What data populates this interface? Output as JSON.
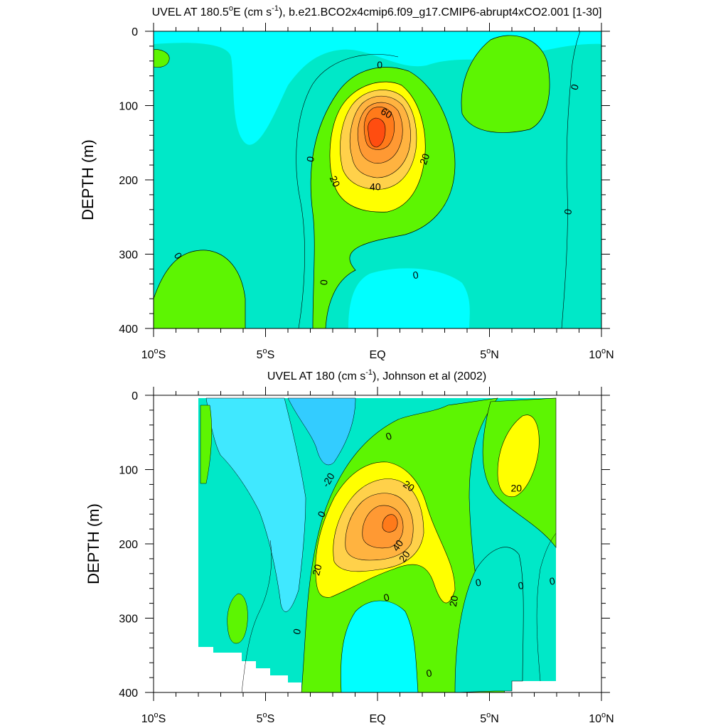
{
  "chart_data": [
    {
      "type": "contour",
      "title_main": "UVEL AT 180.5",
      "title_deg": "o",
      "title_mid": "E (cm s",
      "title_sup": "-1",
      "title_end": "), b.e21.BCO2x4cmip6.f09_g17.CMIP6-abrupt4xCO2.001 [1-30]",
      "ylabel": "DEPTH (m)",
      "xlim": [
        -10,
        10
      ],
      "ylim": [
        0,
        400
      ],
      "y_inverted": true,
      "y_ticks": [
        "0",
        "100",
        "200",
        "300",
        "400"
      ],
      "x_ticks": [
        {
          "v": -10,
          "num": "10",
          "deg": "o",
          "hem": "S"
        },
        {
          "v": -5,
          "num": "5",
          "deg": "o",
          "hem": "S"
        },
        {
          "v": 0,
          "num": "EQ",
          "deg": "",
          "hem": ""
        },
        {
          "v": 5,
          "num": "5",
          "deg": "o",
          "hem": "N"
        },
        {
          "v": 10,
          "num": "10",
          "deg": "o",
          "hem": "N"
        }
      ],
      "max_core": {
        "lat": 0.0,
        "depth": 145,
        "value": 70
      },
      "contour_labels": [
        {
          "text": "0",
          "lat": 0.1,
          "depth": 45,
          "rot": 0
        },
        {
          "text": "60",
          "lat": 0.4,
          "depth": 110,
          "rot": 30
        },
        {
          "text": "20",
          "lat": 2.1,
          "depth": 172,
          "rot": -70
        },
        {
          "text": "0",
          "lat": -3.0,
          "depth": 172,
          "rot": -80
        },
        {
          "text": "20",
          "lat": -1.9,
          "depth": 202,
          "rot": 65
        },
        {
          "text": "40",
          "lat": -0.1,
          "depth": 209,
          "rot": 0
        },
        {
          "text": "0",
          "lat": 8.8,
          "depth": 75,
          "rot": -75
        },
        {
          "text": "0",
          "lat": 8.5,
          "depth": 243,
          "rot": -80
        },
        {
          "text": "0",
          "lat": -8.9,
          "depth": 302,
          "rot": 60
        },
        {
          "text": "0",
          "lat": -2.4,
          "depth": 338,
          "rot": -85
        },
        {
          "text": "0",
          "lat": 1.7,
          "depth": 328,
          "rot": -10
        }
      ]
    },
    {
      "type": "contour",
      "title_main": "UVEL AT 180 (cm s",
      "title_sup": "-1",
      "title_end": "), Johnson et al (2002)",
      "ylabel": "DEPTH (m)",
      "xlim": [
        -10,
        10
      ],
      "ylim": [
        0,
        400
      ],
      "y_inverted": true,
      "y_ticks": [
        "0",
        "100",
        "200",
        "300",
        "400"
      ],
      "x_ticks": [
        {
          "v": -10,
          "num": "10",
          "deg": "o",
          "hem": "S"
        },
        {
          "v": -5,
          "num": "5",
          "deg": "o",
          "hem": "S"
        },
        {
          "v": 0,
          "num": "EQ",
          "deg": "",
          "hem": ""
        },
        {
          "v": 5,
          "num": "5",
          "deg": "o",
          "hem": "N"
        },
        {
          "v": 10,
          "num": "10",
          "deg": "o",
          "hem": "N"
        }
      ],
      "data_lat_range": [
        -8,
        8
      ],
      "max_core": {
        "lat": 0.5,
        "depth": 170,
        "value": 60
      },
      "contour_labels": [
        {
          "text": "0",
          "lat": 0.5,
          "depth": 55,
          "rot": -20
        },
        {
          "text": "-20",
          "lat": -2.2,
          "depth": 114,
          "rot": -60
        },
        {
          "text": "20",
          "lat": 1.4,
          "depth": 122,
          "rot": 35
        },
        {
          "text": "0",
          "lat": -2.5,
          "depth": 160,
          "rot": -65
        },
        {
          "text": "20",
          "lat": 6.2,
          "depth": 125,
          "rot": 0
        },
        {
          "text": "40",
          "lat": 0.9,
          "depth": 202,
          "rot": -55
        },
        {
          "text": "20",
          "lat": 1.2,
          "depth": 217,
          "rot": -55
        },
        {
          "text": "20",
          "lat": -2.7,
          "depth": 235,
          "rot": -75
        },
        {
          "text": "20",
          "lat": 3.4,
          "depth": 277,
          "rot": -80
        },
        {
          "text": "0",
          "lat": 0.4,
          "depth": 272,
          "rot": -15
        },
        {
          "text": "0",
          "lat": 4.5,
          "depth": 252,
          "rot": -10
        },
        {
          "text": "0",
          "lat": 6.4,
          "depth": 256,
          "rot": -10
        },
        {
          "text": "0",
          "lat": 7.8,
          "depth": 250,
          "rot": -10
        },
        {
          "text": "0",
          "lat": -3.6,
          "depth": 318,
          "rot": -75
        },
        {
          "text": "0",
          "lat": 2.3,
          "depth": 374,
          "rot": -10
        }
      ]
    }
  ],
  "colors": {
    "cyan": "#00ffff",
    "light_teal": "#00e8c8",
    "aqua": "#00f2b0",
    "green": "#5df502",
    "yellow": "#ffff00",
    "light_orange": "#ffd14a",
    "orange_a": "#ffb340",
    "orange_b": "#ff9933",
    "dark_orange": "#ff7a1a",
    "red_orange": "#ff4d10",
    "sky": "#40e8ff",
    "blue_light": "#33ccff",
    "line": "#000000"
  }
}
